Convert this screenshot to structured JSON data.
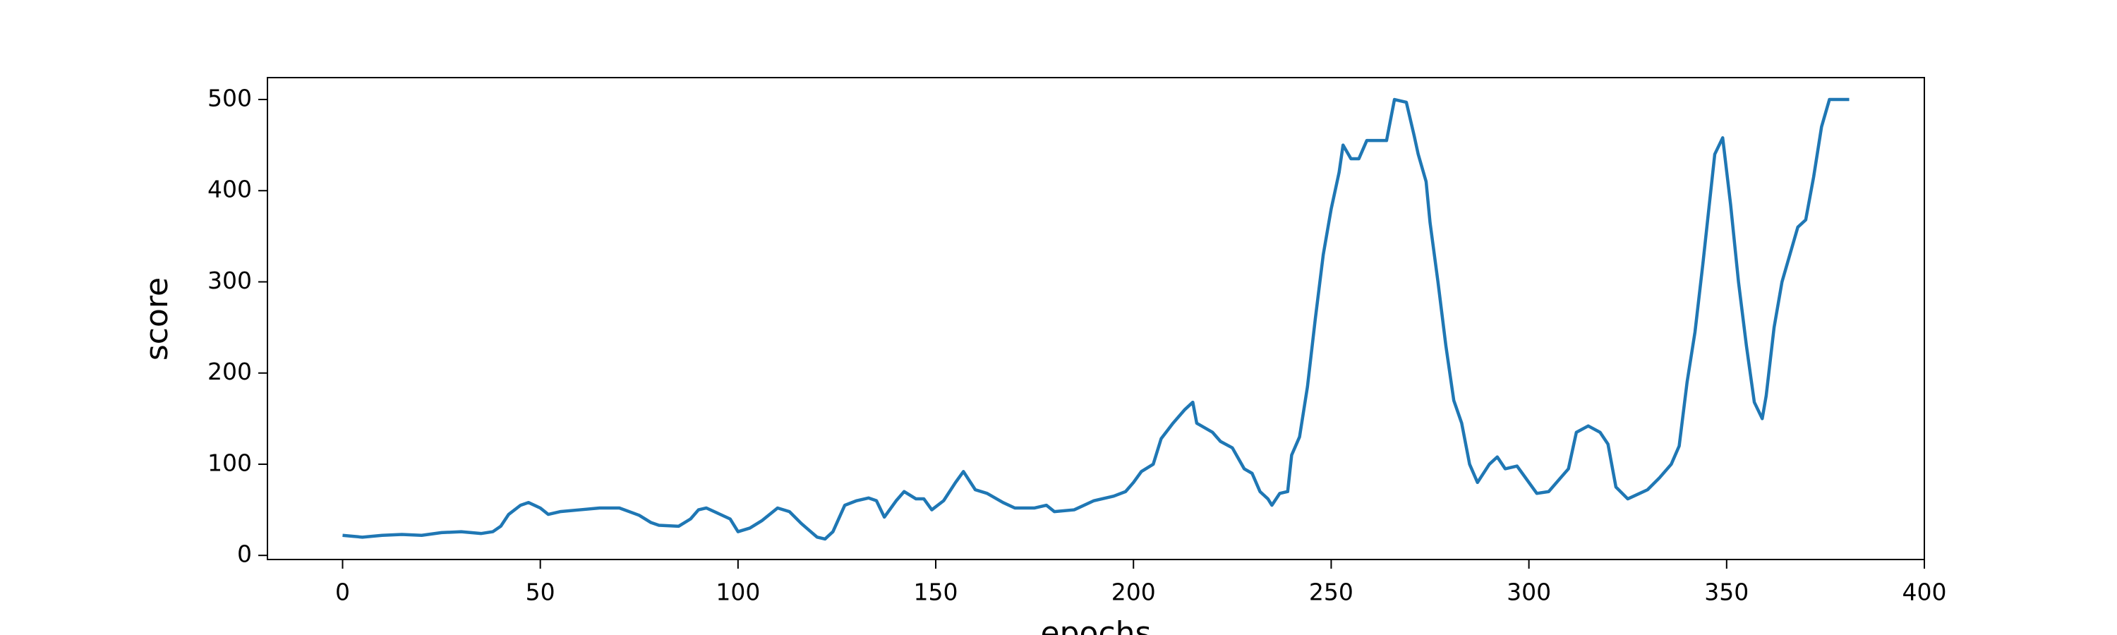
{
  "chart_data": {
    "type": "line",
    "xlabel": "epochs",
    "ylabel": "score",
    "x": [
      0,
      5,
      10,
      15,
      20,
      25,
      30,
      35,
      38,
      40,
      42,
      45,
      47,
      50,
      52,
      55,
      60,
      65,
      70,
      75,
      78,
      80,
      85,
      88,
      90,
      92,
      95,
      98,
      100,
      103,
      106,
      110,
      113,
      116,
      120,
      122,
      124,
      127,
      130,
      133,
      135,
      137,
      140,
      142,
      145,
      147,
      149,
      152,
      155,
      157,
      160,
      163,
      167,
      170,
      175,
      178,
      180,
      185,
      190,
      195,
      198,
      200,
      202,
      205,
      207,
      210,
      213,
      215,
      216,
      220,
      222,
      225,
      228,
      230,
      232,
      234,
      235,
      237,
      239,
      240,
      242,
      244,
      246,
      248,
      250,
      252,
      253,
      255,
      257,
      259,
      264,
      266,
      269,
      271,
      272,
      274,
      275,
      277,
      279,
      281,
      283,
      285,
      287,
      290,
      292,
      294,
      297,
      300,
      302,
      305,
      308,
      310,
      312,
      315,
      318,
      320,
      322,
      325,
      328,
      330,
      333,
      336,
      338,
      340,
      342,
      344,
      346,
      347,
      349,
      351,
      353,
      355,
      357,
      359,
      360,
      362,
      364,
      366,
      368,
      370,
      372,
      374,
      376,
      381
    ],
    "series": [
      {
        "color": "#1f77b4",
        "values": [
          22,
          20,
          22,
          23,
          22,
          25,
          26,
          24,
          26,
          32,
          45,
          55,
          58,
          52,
          45,
          48,
          50,
          52,
          52,
          44,
          36,
          33,
          32,
          40,
          50,
          52,
          46,
          40,
          26,
          30,
          38,
          52,
          48,
          35,
          20,
          18,
          26,
          55,
          60,
          63,
          60,
          42,
          60,
          70,
          62,
          62,
          50,
          60,
          80,
          92,
          72,
          68,
          58,
          52,
          52,
          55,
          48,
          50,
          60,
          65,
          70,
          80,
          92,
          100,
          128,
          145,
          160,
          168,
          145,
          135,
          125,
          118,
          95,
          90,
          70,
          62,
          55,
          68,
          70,
          110,
          130,
          185,
          260,
          330,
          380,
          420,
          450,
          435,
          435,
          455,
          455,
          500,
          497,
          460,
          440,
          410,
          365,
          300,
          230,
          170,
          145,
          100,
          80,
          100,
          108,
          95,
          98,
          80,
          68,
          70,
          85,
          95,
          135,
          142,
          135,
          122,
          75,
          62,
          68,
          72,
          85,
          100,
          120,
          190,
          245,
          320,
          400,
          440,
          458,
          385,
          300,
          230,
          168,
          150,
          175,
          250,
          300,
          330,
          360,
          368,
          415,
          470,
          500,
          500
        ]
      }
    ],
    "xlim": [
      -19,
      400
    ],
    "ylim": [
      -4.5,
      524
    ],
    "xticks": [
      0,
      50,
      100,
      150,
      200,
      250,
      300,
      350,
      400
    ],
    "yticks": [
      0,
      100,
      200,
      300,
      400,
      500
    ]
  }
}
